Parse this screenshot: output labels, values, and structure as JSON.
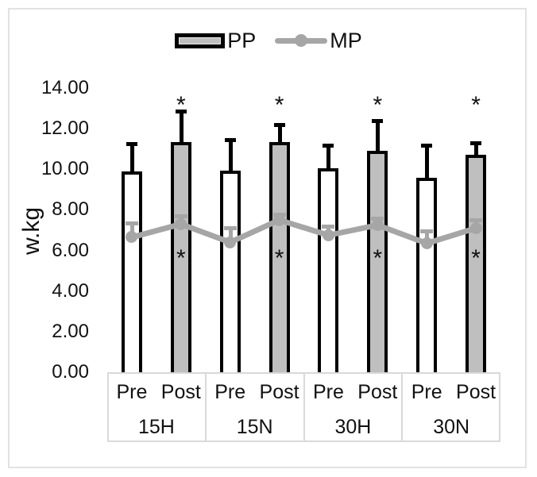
{
  "figure": {
    "background": "#ffffff",
    "border_color": "#e2e2e2"
  },
  "legend": {
    "items": [
      {
        "label": "PP",
        "swatch": "bar-swatch",
        "fill": "#bfbfbf",
        "border": "#000000"
      },
      {
        "label": "MP",
        "swatch": "line-swatch",
        "color": "#a6a6a6"
      }
    ]
  },
  "chart_data": {
    "type": "bar",
    "subtype": "bar-with-line-overlay",
    "title": "",
    "xlabel": "",
    "ylabel": "w.kg",
    "ylim": [
      0,
      14
    ],
    "ytick_step": 2,
    "ytick_labels": [
      "0.00",
      "2.00",
      "4.00",
      "6.00",
      "8.00",
      "10.00",
      "12.00",
      "14.00"
    ],
    "grid": false,
    "legend_position": "top-center",
    "groups": [
      "15H",
      "15N",
      "30H",
      "30N"
    ],
    "timepoints": [
      "Pre",
      "Post"
    ],
    "categories": [
      "15H Pre",
      "15H Post",
      "15N Pre",
      "15N Post",
      "30H Pre",
      "30H Post",
      "30N Pre",
      "30N Post"
    ],
    "series": [
      {
        "name": "PP",
        "type": "bar",
        "values": [
          9.9,
          11.35,
          9.95,
          11.35,
          10.05,
          10.9,
          9.6,
          10.7
        ],
        "errors_up": [
          1.35,
          1.5,
          1.5,
          0.85,
          1.15,
          1.5,
          1.6,
          0.6
        ],
        "fill_pre": "#ffffff",
        "fill_post": "#bfbfbf",
        "border": "#000000",
        "error_color": "#000000"
      },
      {
        "name": "MP",
        "type": "line",
        "values": [
          6.65,
          7.3,
          6.4,
          7.5,
          6.75,
          7.25,
          6.35,
          7.1
        ],
        "errors_up": [
          0.7,
          0.4,
          0.7,
          0.3,
          0.45,
          0.35,
          0.6,
          0.4
        ],
        "color": "#a6a6a6",
        "marker": "circle",
        "error_color": "#a6a6a6"
      }
    ],
    "annotations": {
      "sig_above_bars": {
        "symbol": "*",
        "applies_to": [
          "15H Post",
          "15N Post",
          "30H Post",
          "30N Post"
        ],
        "level_value": 13.4
      },
      "sig_below_line": {
        "symbol": "*",
        "applies_to": [
          "15H Post",
          "15N Post",
          "30H Post",
          "30N Post"
        ],
        "level_value": 5.85
      }
    },
    "colors": {
      "bar_fill_post": "#bfbfbf",
      "bar_fill_pre": "#ffffff",
      "bar_border": "#000000",
      "line": "#a6a6a6",
      "text": "#111111",
      "category_border": "#d9d9d9"
    }
  }
}
